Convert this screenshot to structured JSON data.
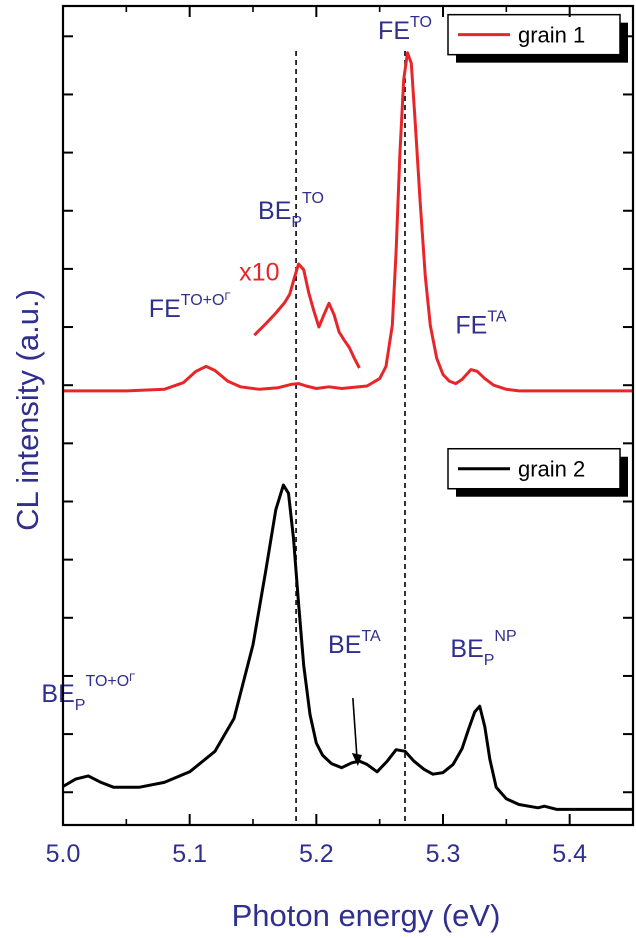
{
  "chart_data": {
    "type": "line",
    "xlabel": "Photon energy (eV)",
    "ylabel": "CL intensity (a.u.)",
    "xlim": [
      5.0,
      5.45
    ],
    "ylim": [
      0,
      100
    ],
    "x_ticks": [
      "5.0",
      "5.1",
      "5.2",
      "5.3",
      "5.4"
    ],
    "x_tick_values": [
      5.0,
      5.1,
      5.2,
      5.3,
      5.4
    ],
    "grid": false,
    "legend_placement": "top-right",
    "series": [
      {
        "name": "grain 1",
        "color": "#e8262a",
        "x": [
          5.0,
          5.05,
          5.08,
          5.095,
          5.105,
          5.113,
          5.12,
          5.13,
          5.14,
          5.155,
          5.17,
          5.18,
          5.186,
          5.192,
          5.2,
          5.21,
          5.22,
          5.24,
          5.25,
          5.255,
          5.26,
          5.263,
          5.266,
          5.269,
          5.272,
          5.275,
          5.278,
          5.282,
          5.286,
          5.29,
          5.295,
          5.3,
          5.305,
          5.31,
          5.315,
          5.322,
          5.327,
          5.333,
          5.34,
          5.35,
          5.36,
          5.38,
          5.4,
          5.45
        ],
        "values": [
          53.0,
          53.0,
          53.2,
          54.0,
          55.4,
          56.0,
          55.5,
          54.2,
          53.5,
          53.2,
          53.4,
          53.8,
          53.9,
          53.6,
          53.3,
          53.5,
          53.3,
          53.6,
          54.5,
          56.0,
          61.0,
          70.0,
          82.0,
          91.0,
          94.3,
          93.0,
          86.0,
          76.0,
          67.0,
          61.0,
          57.0,
          55.0,
          54.2,
          53.9,
          54.4,
          55.6,
          55.4,
          54.5,
          53.7,
          53.2,
          53.0,
          53.0,
          53.0,
          53.0
        ]
      },
      {
        "name": "x10",
        "color": "#e8262a",
        "x": [
          5.151,
          5.16,
          5.168,
          5.175,
          5.179,
          5.183,
          5.186,
          5.19,
          5.194,
          5.198,
          5.202,
          5.206,
          5.21,
          5.214,
          5.218,
          5.222,
          5.226,
          5.23,
          5.234
        ],
        "values": [
          59.8,
          61.2,
          62.5,
          63.8,
          64.8,
          67.0,
          68.5,
          67.8,
          65.0,
          62.8,
          60.8,
          62.3,
          63.7,
          62.3,
          60.2,
          59.2,
          58.3,
          57.0,
          55.8
        ]
      },
      {
        "name": "grain 2",
        "color": "#000000",
        "x": [
          5.0,
          5.01,
          5.02,
          5.03,
          5.04,
          5.06,
          5.08,
          5.1,
          5.12,
          5.135,
          5.15,
          5.16,
          5.168,
          5.174,
          5.178,
          5.182,
          5.186,
          5.19,
          5.195,
          5.2,
          5.205,
          5.212,
          5.22,
          5.228,
          5.234,
          5.24,
          5.248,
          5.256,
          5.263,
          5.27,
          5.277,
          5.285,
          5.292,
          5.3,
          5.308,
          5.315,
          5.32,
          5.325,
          5.329,
          5.333,
          5.337,
          5.342,
          5.35,
          5.36,
          5.375,
          5.38,
          5.39,
          5.4,
          5.45
        ],
        "values": [
          4.7,
          5.6,
          6.0,
          5.2,
          4.6,
          4.6,
          5.2,
          6.5,
          9.0,
          13.0,
          22.0,
          31.0,
          38.5,
          41.5,
          40.5,
          35.0,
          27.0,
          19.5,
          13.5,
          10.0,
          8.5,
          7.5,
          7.0,
          7.6,
          7.8,
          7.4,
          6.5,
          7.8,
          9.2,
          9.0,
          7.8,
          6.8,
          6.2,
          6.4,
          7.4,
          9.3,
          11.6,
          13.8,
          14.5,
          12.0,
          8.0,
          4.6,
          3.2,
          2.5,
          2.1,
          2.3,
          1.9,
          1.9,
          1.9
        ]
      }
    ],
    "dashed_lines_x": [
      5.184,
      5.27
    ],
    "annotations": [
      {
        "base": "FE",
        "sup": "TO",
        "sub": "",
        "x": 5.27,
        "y": 96
      },
      {
        "base": "BE",
        "sub": "P",
        "sup": "TO",
        "x": 5.18,
        "y": 74
      },
      {
        "base": "x10",
        "sub": "",
        "sup": "",
        "x": 5.155,
        "y": 66.5
      },
      {
        "base": "FE",
        "sup": "TO+O",
        "sup2": "Γ",
        "sub": "",
        "x": 5.1,
        "y": 62
      },
      {
        "base": "FE",
        "sup": "TA",
        "sub": "",
        "x": 5.33,
        "y": 60
      },
      {
        "base": "BE",
        "sup": "TA",
        "sub": "",
        "x": 5.23,
        "y": 21
      },
      {
        "base": "BE",
        "sub": "P",
        "sup": "NP",
        "x": 5.332,
        "y": 20.5
      },
      {
        "base": "BE",
        "sub": "P",
        "sup": "TO+O",
        "sup2": "Γ",
        "x": 5.02,
        "y": 15
      }
    ],
    "arrow": {
      "x": 5.232,
      "y_from": 15.5,
      "y_to": 7.2
    }
  }
}
